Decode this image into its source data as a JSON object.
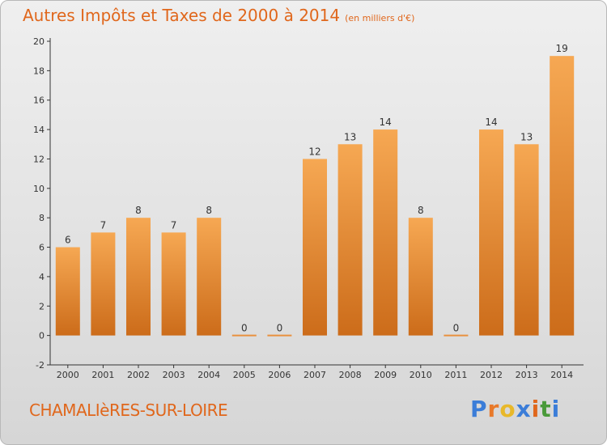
{
  "title": "Autres Impôts et Taxes de 2000 à 2014",
  "subtitle": "(en milliers d'€)",
  "commune": "CHAMALIèRES-SUR-LOIRE",
  "logo": {
    "letters": [
      "P",
      "r",
      "o",
      "x",
      "i",
      "t",
      "i"
    ],
    "colors": [
      "#3b7dd8",
      "#e8792a",
      "#e8b82a",
      "#3b7dd8",
      "#e0671c",
      "#4a9a3a",
      "#3b7dd8"
    ]
  },
  "colors": {
    "accent": "#e0671c",
    "bar_top": "#f6a853",
    "bar_bottom": "#cc6c1a"
  },
  "chart_data": {
    "type": "bar",
    "title": "Autres Impôts et Taxes de 2000 à 2014",
    "categories": [
      "2000",
      "2001",
      "2002",
      "2003",
      "2004",
      "2005",
      "2006",
      "2007",
      "2008",
      "2009",
      "2010",
      "2011",
      "2012",
      "2013",
      "2014"
    ],
    "values": [
      6,
      7,
      8,
      7,
      8,
      0,
      0,
      12,
      13,
      14,
      8,
      0,
      14,
      13,
      19
    ],
    "data_labels": [
      "6",
      "7",
      "8",
      "7",
      "8",
      "0",
      "0",
      "12",
      "13",
      "14",
      "8",
      "0",
      "14",
      "13",
      "19"
    ],
    "ylim": [
      -2,
      20
    ],
    "yticks": [
      "-2",
      "0",
      "2",
      "4",
      "6",
      "8",
      "10",
      "12",
      "14",
      "16",
      "18",
      "20"
    ],
    "grid": false
  }
}
